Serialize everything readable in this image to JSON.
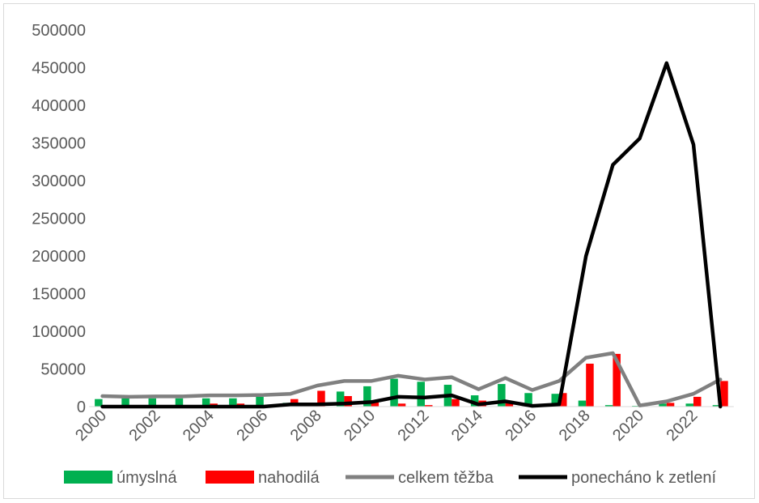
{
  "chart_data": {
    "type": "bar",
    "title": "",
    "xlabel": "",
    "ylabel": "",
    "ylim": [
      0,
      500000
    ],
    "y_ticks": [
      "0",
      "50000",
      "100000",
      "150000",
      "200000",
      "250000",
      "300000",
      "350000",
      "400000",
      "450000",
      "500000"
    ],
    "x_tick_labels": [
      "2000",
      "2002",
      "2004",
      "2006",
      "2008",
      "2010",
      "2012",
      "2014",
      "2016",
      "2018",
      "2020",
      "2022"
    ],
    "categories": [
      "2000",
      "2001",
      "2002",
      "2003",
      "2004",
      "2005",
      "2006",
      "2007",
      "2008",
      "2009",
      "2010",
      "2011",
      "2012",
      "2013",
      "2014",
      "2015",
      "2016",
      "2017",
      "2018",
      "2019",
      "2020",
      "2021",
      "2022",
      "2023"
    ],
    "grid": false,
    "legend_position": "bottom",
    "series": [
      {
        "name": "úmyslná",
        "kind": "bar",
        "color": "#00b050",
        "values": [
          10000,
          11000,
          11000,
          11000,
          11000,
          11000,
          13000,
          5000,
          5000,
          20000,
          27000,
          37000,
          33000,
          29000,
          15000,
          30000,
          18000,
          17000,
          8000,
          2000,
          1000,
          4000,
          4000,
          2000
        ]
      },
      {
        "name": "nahodilá",
        "kind": "bar",
        "color": "#ff0000",
        "values": [
          2000,
          1000,
          1000,
          1000,
          4000,
          4000,
          2000,
          10000,
          21000,
          14000,
          6000,
          4000,
          2000,
          10000,
          8000,
          5000,
          2000,
          18000,
          57000,
          70000,
          1000,
          5000,
          13000,
          34000
        ]
      },
      {
        "name": "celkem těžba",
        "kind": "line",
        "color": "#808080",
        "values": [
          14000,
          13000,
          13500,
          13500,
          15000,
          15000,
          15500,
          17000,
          28000,
          34000,
          34000,
          41000,
          36000,
          39000,
          23000,
          38000,
          22000,
          34000,
          65000,
          71000,
          1500,
          7000,
          17000,
          36000
        ]
      },
      {
        "name": "ponecháno k zetlení",
        "kind": "line",
        "color": "#000000",
        "values": [
          0,
          0,
          0,
          0,
          0,
          0,
          0,
          3000,
          3000,
          4000,
          6000,
          13000,
          12000,
          15000,
          3000,
          7000,
          1000,
          3000,
          200000,
          321000,
          356000,
          456000,
          348000,
          0
        ]
      }
    ]
  }
}
